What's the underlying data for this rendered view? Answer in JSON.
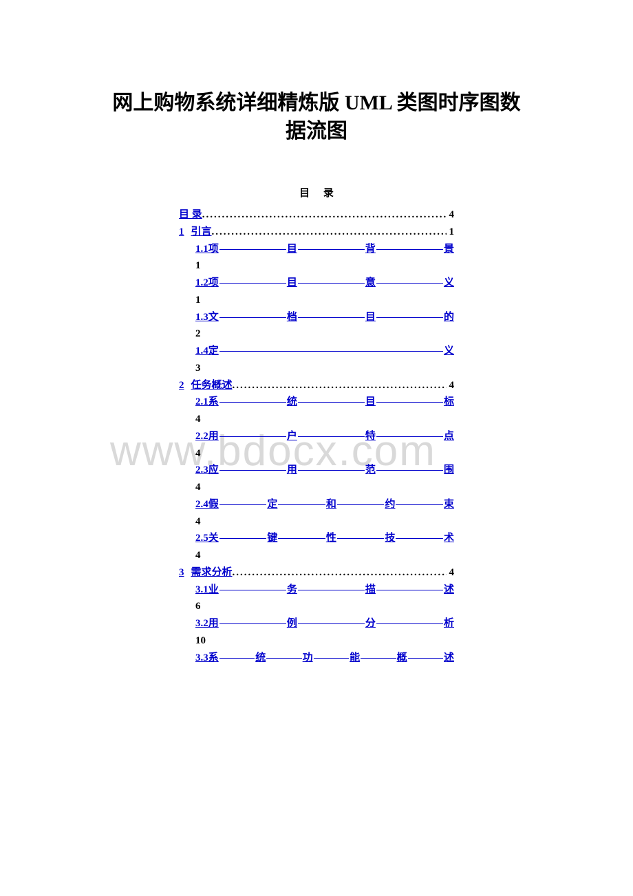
{
  "doc": {
    "title_line1": "网上购物系统详细精炼版 UML 类图时序图数",
    "title_line2": "据流图",
    "toc_heading": "目  录",
    "watermark": "www.bdocx.com"
  },
  "toc": {
    "top": [
      {
        "num": "",
        "label": "目  录",
        "page": "4"
      },
      {
        "num": "1",
        "label": "引言",
        "page": "1"
      }
    ],
    "s1": [
      {
        "head": "1.1项",
        "chars": [
          "目",
          "背"
        ],
        "tail": "景",
        "page": "1"
      },
      {
        "head": "1.2项",
        "chars": [
          "目",
          "意"
        ],
        "tail": "义",
        "page": "1"
      },
      {
        "head": "1.3文",
        "chars": [
          "档",
          "目"
        ],
        "tail": "的",
        "page": "2"
      },
      {
        "head": "1.4定",
        "chars": [],
        "tail": "义",
        "page": "3"
      }
    ],
    "top2": {
      "num": "2",
      "label": "任务概述",
      "page": "4"
    },
    "s2": [
      {
        "head": "2.1系",
        "chars": [
          "统",
          "目"
        ],
        "tail": "标",
        "page": "4"
      },
      {
        "head": "2.2用",
        "chars": [
          "户",
          "特"
        ],
        "tail": "点",
        "page": "4"
      },
      {
        "head": "2.3应",
        "chars": [
          "用",
          "范"
        ],
        "tail": "围",
        "page": "4"
      },
      {
        "head": "2.4假",
        "chars": [
          "定",
          "和",
          "约"
        ],
        "tail": "束",
        "page": "4"
      },
      {
        "head": "2.5关",
        "chars": [
          "键",
          "性",
          "技"
        ],
        "tail": "术",
        "page": "4"
      }
    ],
    "top3": {
      "num": "3",
      "label": "需求分析",
      "page": "4"
    },
    "s3": [
      {
        "head": "3.1业",
        "chars": [
          "务",
          "描"
        ],
        "tail": "述",
        "page": "6"
      },
      {
        "head": "3.2用",
        "chars": [
          "例",
          "分"
        ],
        "tail": "析",
        "page": "10"
      },
      {
        "head": "3.3系",
        "chars": [
          "统",
          "功",
          "能",
          "概"
        ],
        "tail": "述",
        "page": ""
      }
    ]
  },
  "colors": {
    "link": "#0000cc",
    "text": "#000000",
    "watermark": "#d9d9d9",
    "background": "#ffffff"
  }
}
